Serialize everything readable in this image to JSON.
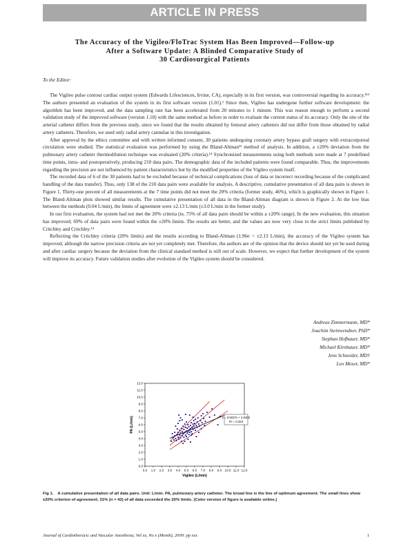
{
  "banner": "ARTICLE IN PRESS",
  "title_lines": [
    "The Accuracy of the Vigileo/FloTrac System Has Been Improved—Follow-up",
    "After a Software Update: A Blinded Comparative Study of",
    "30 Cardiosurgical Patients"
  ],
  "salutation": "To the Editor:",
  "paragraphs": [
    "The Vigileo pulse contour cardiac output system (Edwards Lifesciences, Irvine, CA), especially in its first version, was controversial regarding its accuracy.¹¹² The authors presented an evaluation of the system in its first software version (1.01).¹ Since then, Vigileo has undergone further software development: the algorithm has been improved, and the data sampling rate has been accelerated from 20 minutes to 1 minute. This was reason enough to perform a second validation study of the improved software (version 1.10) with the same method as before in order to evaluate the current status of its accuracy. Only the site of the arterial catheter differs from the previous study, since we found that the results obtained by femoral artery catheters did not differ from those obtained by radial artery catheters. Therefore, we used only radial artery cannulae in this investigation.",
    "After approval by the ethics committee and with written informed consent, 30 patients undergoing coronary artery bypass graft surgery with extracorporeal circulation were studied. The statistical evaluation was performed by using the Bland-Altman¹³ method of analysis. In addition, a ±20% deviation from the pulmonary artery catheter thermodilution technique was evaluated (20% criteria).¹⁴ Synchronized measurements using both methods were made at 7 predefined time points, intra- and postoperatively, producing 210 data pairs. The demographic data of the included patients were found comparable. Thus, the improvements regarding the precision are not influenced by patient characteristics but by the modified properties of the Vigileo system itself.",
    "The recorded data of 6 of the 30 patients had to be excluded because of technical complications (loss of data or incorrect recording because of the complicated handling of the data transfer). Thus, only 138 of the 210 data pairs were available for analysis. A descriptive, cumulative presentation of all data pairs is shown in Figure 1. Thirty-one percent of all measurements at the 7 time points did not meet the 20% criteria (former study, 46%), which is graphically shown in Figure 1. The Bland-Altman plots showed similar results. The cumulative presentation of all data in the Bland-Altman diagram is shown in Figure 2. At the low bias between the methods (0.04 L/min), the limits of agreement were ±2.13 L/min (±3.0 L/min in the former study).",
    "In our first evaluation, the system had not met the 20% criteria (ie, 75% of all data pairs should be within a ±20% range). In the new evaluation, this situation has improved; 69% of data pairs were found within the ±20% limits. The results are better, and the values are now very close to the strict limits published by Critchley and Critchley.¹⁴",
    "Reflecting the Critchley criteria (20% limits) and the results according to Bland-Altman (1.96σ = ±2.13 L/min), the accuracy of the Vigileo system has improved, although the narrow precision criteria are not yet completely met. Therefore, the authors are of the opinion that the device should not yet be used during and after cardiac surgery because the deviation from the clinical standard method is still out of scale. However, we expect that further development of the system will improve its accuracy. Future validation studies after evolution of the Vigileo system should be considered."
  ],
  "authors": [
    "Andreas Zimmermann, MD*",
    "Joachim Steinwendner, PhD*",
    "Stephan Hofbauer, MD*",
    "Michael Kirnbauer, MD*",
    "Jens Schneider, MD†",
    "Leo Moser, MD*"
  ],
  "chart_data": {
    "type": "scatter",
    "xlabel": "Vigileo (L/min)",
    "ylabel": "PA (L/min)",
    "xlim": [
      0,
      12
    ],
    "ylim": [
      0,
      12
    ],
    "x_ticks": [
      "0.0",
      "1.0",
      "2.0",
      "3.0",
      "4.0",
      "5.0",
      "6.0",
      "7.0",
      "8.0",
      "9.0",
      "10.0",
      "11.0",
      "12.0"
    ],
    "y_ticks": [
      "0.0",
      "1.0",
      "2.0",
      "3.0",
      "4.0",
      "5.0",
      "6.0",
      "7.0",
      "8.0",
      "9.0",
      "10.0",
      "11.0",
      "12.0"
    ],
    "grid": false,
    "regression_label": "y = 0.5027x + 2.5402",
    "r2_label": "R² = 0.323",
    "lines": [
      {
        "name": "line of optimum agreement",
        "color": "#c00000",
        "points": [
          [
            3.0,
            3.0
          ],
          [
            9.6,
            9.6
          ]
        ]
      },
      {
        "name": "+20% limit",
        "color": "#c00000",
        "points": [
          [
            3.0,
            3.6
          ],
          [
            7.8,
            9.36
          ]
        ]
      },
      {
        "name": "-20% limit",
        "color": "#c00000",
        "points": [
          [
            3.0,
            2.4
          ],
          [
            10.0,
            8.0
          ]
        ]
      },
      {
        "name": "linear regression",
        "color": "#000000",
        "points": [
          [
            3.0,
            4.05
          ],
          [
            9.6,
            7.37
          ]
        ]
      }
    ],
    "series": [
      {
        "marker_color": "#0a0a8c",
        "points": [
          [
            3.2,
            3.6
          ],
          [
            3.4,
            4.1
          ],
          [
            3.5,
            3.8
          ],
          [
            3.6,
            4.4
          ],
          [
            3.7,
            4.0
          ],
          [
            3.8,
            3.7
          ],
          [
            3.9,
            4.6
          ],
          [
            4.0,
            4.2
          ],
          [
            4.0,
            4.9
          ],
          [
            4.1,
            3.9
          ],
          [
            4.2,
            4.5
          ],
          [
            4.2,
            5.2
          ],
          [
            4.3,
            4.1
          ],
          [
            4.3,
            4.8
          ],
          [
            4.4,
            5.5
          ],
          [
            4.4,
            3.6
          ],
          [
            4.5,
            4.4
          ],
          [
            4.5,
            5.0
          ],
          [
            4.6,
            4.7
          ],
          [
            4.6,
            5.8
          ],
          [
            4.7,
            4.2
          ],
          [
            4.7,
            5.3
          ],
          [
            4.8,
            4.9
          ],
          [
            4.8,
            6.1
          ],
          [
            4.9,
            4.5
          ],
          [
            4.9,
            5.6
          ],
          [
            5.0,
            5.1
          ],
          [
            5.0,
            4.3
          ],
          [
            5.0,
            6.4
          ],
          [
            5.1,
            4.8
          ],
          [
            5.1,
            5.5
          ],
          [
            5.2,
            5.0
          ],
          [
            5.2,
            6.0
          ],
          [
            5.3,
            4.6
          ],
          [
            5.3,
            5.7
          ],
          [
            5.4,
            5.2
          ],
          [
            5.4,
            4.9
          ],
          [
            5.5,
            5.9
          ],
          [
            5.5,
            5.4
          ],
          [
            5.6,
            6.3
          ],
          [
            5.6,
            5.0
          ],
          [
            5.7,
            5.6
          ],
          [
            5.7,
            4.7
          ],
          [
            5.8,
            6.1
          ],
          [
            5.8,
            5.3
          ],
          [
            5.9,
            5.8
          ],
          [
            5.9,
            6.6
          ],
          [
            6.0,
            5.5
          ],
          [
            6.0,
            6.2
          ],
          [
            6.1,
            5.2
          ],
          [
            6.1,
            6.8
          ],
          [
            6.2,
            5.9
          ],
          [
            6.3,
            6.4
          ],
          [
            6.3,
            5.6
          ],
          [
            6.4,
            7.0
          ],
          [
            6.5,
            6.1
          ],
          [
            6.6,
            5.8
          ],
          [
            6.7,
            6.6
          ],
          [
            6.8,
            7.3
          ],
          [
            6.9,
            6.3
          ],
          [
            7.0,
            7.6
          ],
          [
            7.1,
            6.9
          ],
          [
            7.3,
            6.5
          ],
          [
            7.5,
            7.8
          ],
          [
            7.8,
            7.1
          ],
          [
            8.1,
            8.3
          ],
          [
            8.4,
            7.4
          ],
          [
            8.8,
            6.0
          ],
          [
            9.1,
            7.2
          ],
          [
            4.1,
            7.4
          ],
          [
            4.3,
            7.0
          ],
          [
            4.5,
            6.7
          ],
          [
            4.0,
            6.2
          ],
          [
            3.9,
            5.4
          ],
          [
            3.6,
            4.9
          ],
          [
            3.3,
            4.7
          ],
          [
            4.6,
            3.3
          ],
          [
            4.8,
            3.6
          ],
          [
            5.2,
            3.9
          ],
          [
            5.5,
            3.5
          ],
          [
            5.6,
            4.5
          ],
          [
            6.2,
            4.3
          ],
          [
            6.5,
            4.9
          ],
          [
            6.8,
            5.4
          ],
          [
            7.2,
            5.9
          ],
          [
            5.4,
            7.4
          ],
          [
            5.8,
            7.1
          ],
          [
            4.9,
            7.5
          ],
          [
            4.2,
            6.6
          ],
          [
            3.7,
            5.8
          ]
        ]
      }
    ]
  },
  "figure_caption": {
    "label": "Fig 1.",
    "text": "A cumulative presentation of all data pairs. Unit: L/min. PA, pulmonary artery catheter. The broad line is the line of optimum agreement. The small lines show ±20% criterion of agreement; 31% (n = 43) of all data exceeded the 20% limits. (Color version of figure is available online.)"
  },
  "footer": {
    "journal": "Journal of Cardiothoracic and Vascular Anesthesia, Vol xx, No x (Month), 2009: pp xxx",
    "page": "1"
  }
}
